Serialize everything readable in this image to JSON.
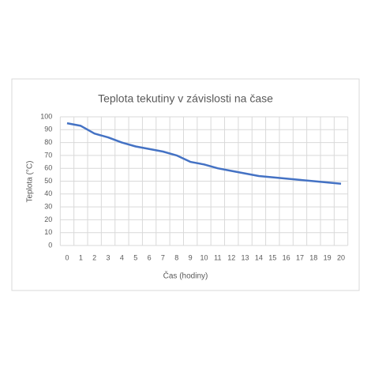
{
  "chart_data": {
    "type": "line",
    "title": "Teplota tekutiny v závislosti na čase",
    "x_label": "Čas (hodiny)",
    "y_label": "Teplota (°C)",
    "x": [
      0,
      1,
      2,
      3,
      4,
      5,
      6,
      7,
      8,
      9,
      10,
      11,
      12,
      13,
      14,
      15,
      16,
      17,
      18,
      19,
      20
    ],
    "series": [
      {
        "name": "Teplota",
        "color": "#4472c4",
        "values": [
          95,
          93,
          87,
          84,
          80,
          77,
          75,
          73,
          70,
          65,
          63,
          60,
          58,
          56,
          54,
          53,
          52,
          51,
          50,
          49,
          48
        ]
      }
    ],
    "xlim": [
      -0.5,
      20.5
    ],
    "xticks": [
      0,
      1,
      2,
      3,
      4,
      5,
      6,
      7,
      8,
      9,
      10,
      11,
      12,
      13,
      14,
      15,
      16,
      17,
      18,
      19,
      20
    ],
    "ylim": [
      0,
      100
    ],
    "yticks": [
      0,
      10,
      20,
      30,
      40,
      50,
      60,
      70,
      80,
      90,
      100
    ],
    "grid": true
  }
}
